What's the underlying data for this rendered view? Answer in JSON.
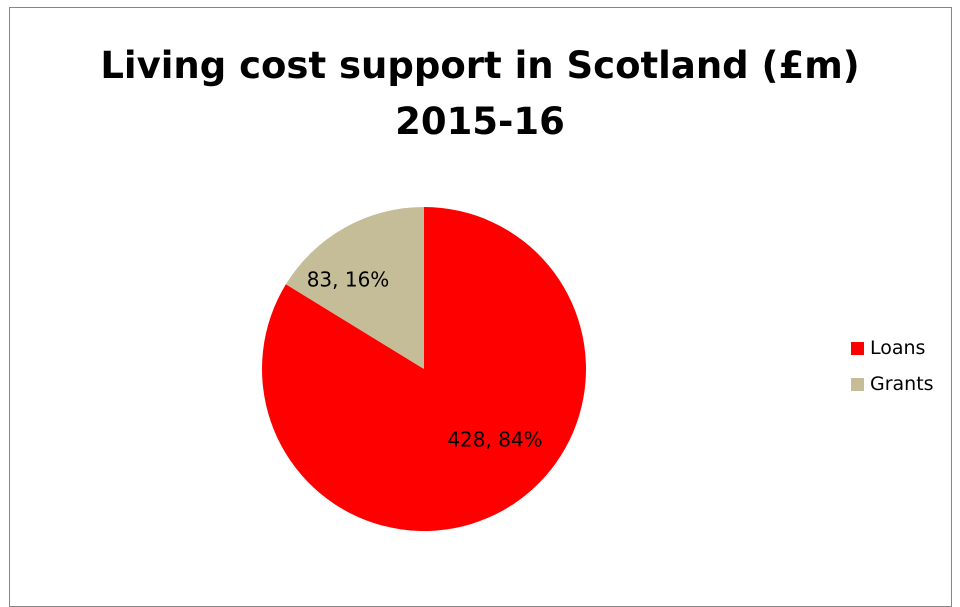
{
  "chart_data": {
    "type": "pie",
    "title_lines": [
      "Living cost support in Scotland (£m)",
      "2015-16"
    ],
    "categories": [
      "Loans",
      "Grants"
    ],
    "values": [
      428,
      83
    ],
    "percentages": [
      "84%",
      "16%"
    ],
    "data_labels": [
      "428, 84%",
      "83, 16%"
    ],
    "colors": [
      "#FF0000",
      "#C4BD97"
    ],
    "legend_position": "right"
  }
}
